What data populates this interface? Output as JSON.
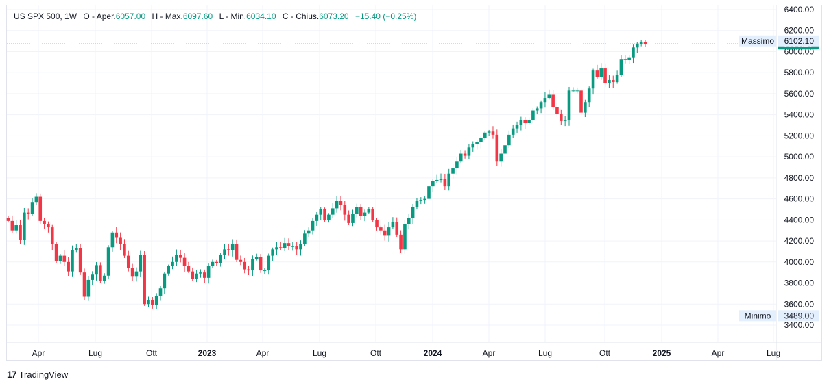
{
  "legend": {
    "symbol": "US SPX 500, 1W",
    "open_label": "O - Aper.",
    "open_value": "6057.00",
    "high_label": "H - Max.",
    "high_value": "6097.60",
    "low_label": "L - Min.",
    "low_value": "6034.10",
    "close_label": "C - Chius.",
    "close_value": "6073.20",
    "change": "−15.40 (−0.25%)"
  },
  "footer": {
    "brand": "TradingView",
    "logo_icon": "tradingview-logo"
  },
  "colors": {
    "up": "#089981",
    "down": "#f23645",
    "grid": "#f0f3fa",
    "axis_line": "#e0e3eb",
    "price_line": "#089981",
    "tag_bg": "#e3effd"
  },
  "chart_data": {
    "type": "candlestick",
    "interval": "1W",
    "ylim": [
      3300,
      6450
    ],
    "y_ticks": [
      "3400.00",
      "3600.00",
      "3800.00",
      "4000.00",
      "4200.00",
      "4400.00",
      "4600.00",
      "4800.00",
      "5000.00",
      "5200.00",
      "5400.00",
      "5600.00",
      "5800.00",
      "6000.00",
      "6200.00",
      "6400.00"
    ],
    "x_ticks": [
      {
        "label": "Apr",
        "year": false
      },
      {
        "label": "Lug",
        "year": false
      },
      {
        "label": "Ott",
        "year": false
      },
      {
        "label": "2023",
        "year": true
      },
      {
        "label": "Apr",
        "year": false
      },
      {
        "label": "Lug",
        "year": false
      },
      {
        "label": "Ott",
        "year": false
      },
      {
        "label": "2024",
        "year": true
      },
      {
        "label": "Apr",
        "year": false
      },
      {
        "label": "Lug",
        "year": false
      },
      {
        "label": "Ott",
        "year": false
      },
      {
        "label": "2025",
        "year": true
      },
      {
        "label": "Apr",
        "year": false
      },
      {
        "label": "Lug",
        "year": false
      }
    ],
    "high_marker": {
      "label": "Massimo",
      "value": "6102.10"
    },
    "low_marker": {
      "label": "Minimo",
      "value": "3489.00"
    },
    "last_price": {
      "value": 6073.2,
      "label": "6073.20"
    },
    "closes": [
      4390,
      4300,
      4350,
      4210,
      4470,
      4460,
      4570,
      4620,
      4390,
      4360,
      4330,
      4170,
      4010,
      4060,
      4000,
      3910,
      4110,
      4130,
      3900,
      3670,
      3830,
      3880,
      3970,
      3820,
      3870,
      4140,
      4280,
      4230,
      4170,
      4060,
      3940,
      3860,
      3910,
      4070,
      3600,
      3640,
      3590,
      3680,
      3750,
      3890,
      3960,
      4000,
      4070,
      4040,
      3960,
      3910,
      3840,
      3890,
      3900,
      3850,
      3960,
      4000,
      3990,
      4070,
      4120,
      4110,
      4170,
      4020,
      4000,
      3930,
      3920,
      4030,
      4050,
      3920,
      3920,
      4060,
      4120,
      4140,
      4130,
      4180,
      4150,
      4150,
      4120,
      4170,
      4270,
      4300,
      4390,
      4450,
      4500,
      4400,
      4450,
      4510,
      4580,
      4540,
      4450,
      4370,
      4460,
      4520,
      4440,
      4470,
      4500,
      4400,
      4330,
      4300,
      4250,
      4330,
      4380,
      4260,
      4120,
      4360,
      4420,
      4520,
      4580,
      4590,
      4600,
      4720,
      4770,
      4780,
      4790,
      4720,
      4840,
      4890,
      4960,
      5030,
      5010,
      5090,
      5120,
      5140,
      5180,
      5230,
      5240,
      5210,
      4960,
      5030,
      5110,
      5210,
      5270,
      5300,
      5350,
      5320,
      5350,
      5440,
      5460,
      5520,
      5560,
      5590,
      5470,
      5410,
      5340,
      5350,
      5630,
      5630,
      5630,
      5420,
      5520,
      5650,
      5820,
      5760,
      5840,
      5700,
      5730,
      5710,
      5780,
      5930,
      5920,
      5940,
      6040,
      6070,
      6090,
      6073
    ]
  }
}
